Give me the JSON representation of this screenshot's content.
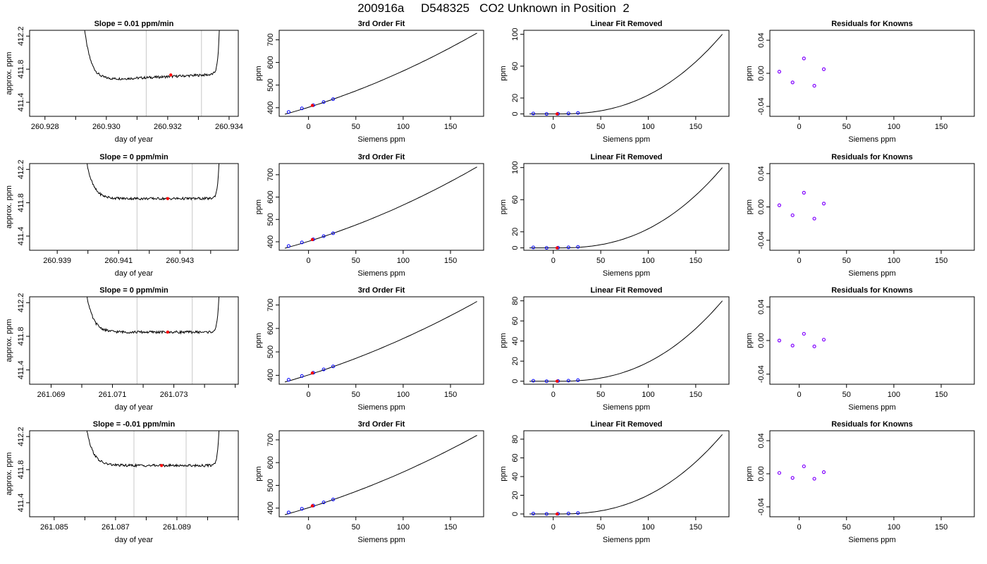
{
  "figure_title": "200916a     D548325   CO2 Unknown in Position  2",
  "colors": {
    "trace": "#000000",
    "window": "#c8c8c8",
    "highlight": "#ff0000",
    "known_points": "#0000ff",
    "unknown_points": "#ff0000",
    "residual_points": "#8000ff"
  },
  "chart_data": [
    {
      "row": 0,
      "type": "line",
      "title": "Slope =  0.01  ppm/min",
      "xlabel": "day of year",
      "ylabel": "approx. ppm",
      "x_ticks": [
        "260.928",
        "260.930",
        "260.932",
        "260.934"
      ],
      "y_ticks": [
        "411.4",
        "411.8",
        "412.2"
      ],
      "xlim": [
        260.9275,
        260.9343
      ],
      "ylim": [
        411.23,
        412.27
      ],
      "window": [
        260.9313,
        260.9331
      ],
      "highlight_x": 260.9321
    },
    {
      "row": 0,
      "type": "line",
      "title": "3rd Order Fit",
      "xlabel": "Siemens ppm",
      "ylabel": "ppm",
      "x_ticks": [
        "0",
        "50",
        "100",
        "150"
      ],
      "y_ticks": [
        "400",
        "500",
        "600",
        "700"
      ],
      "xlim": [
        -31,
        185
      ],
      "ylim": [
        362,
        742
      ],
      "known_points": {
        "x": [
          -21,
          -7,
          5,
          16,
          26
        ],
        "y": [
          381,
          397,
          411,
          425,
          438
        ]
      },
      "unknown_points": {
        "x": [
          4
        ],
        "y": [
          410
        ]
      },
      "curve_end_y": 730
    },
    {
      "row": 0,
      "type": "line",
      "title": "Linear Fit Removed",
      "xlabel": "Siemens ppm",
      "ylabel": "ppm",
      "x_ticks": [
        "0",
        "50",
        "100",
        "150"
      ],
      "y_ticks": [
        "0",
        "20",
        "60",
        "100"
      ],
      "xlim": [
        -31,
        185
      ],
      "ylim": [
        -3,
        105
      ],
      "known_points": {
        "x": [
          -21,
          -7,
          5,
          16,
          26
        ],
        "y": [
          0.5,
          0,
          0.2,
          0.6,
          1.2
        ]
      },
      "unknown_points": {
        "x": [
          4
        ],
        "y": [
          0
        ]
      },
      "curve_end_y": 100
    },
    {
      "row": 0,
      "type": "scatter",
      "title": "Residuals for Knowns",
      "xlabel": "Siemens ppm",
      "ylabel": "ppm",
      "x_ticks": [
        "0",
        "50",
        "100",
        "150"
      ],
      "y_ticks": [
        "-0.04",
        "0.00",
        "0.04"
      ],
      "xlim": [
        -31,
        185
      ],
      "ylim": [
        -0.052,
        0.052
      ],
      "points": {
        "x": [
          -21,
          -7,
          5,
          16,
          26
        ],
        "y": [
          0.002,
          -0.011,
          0.018,
          -0.015,
          0.005
        ]
      }
    },
    {
      "row": 1,
      "type": "line",
      "title": "Slope =  0  ppm/min",
      "xlabel": "day of year",
      "ylabel": "approx. ppm",
      "x_ticks": [
        "260.939",
        "260.941",
        "260.943"
      ],
      "y_ticks": [
        "411.4",
        "411.8",
        "412.2"
      ],
      "xlim": [
        260.9381,
        260.9449
      ],
      "ylim": [
        411.23,
        412.27
      ],
      "window": [
        260.9416,
        260.9434
      ],
      "highlight_x": 260.9426
    },
    {
      "row": 1,
      "type": "line",
      "title": "3rd Order Fit",
      "xlabel": "Siemens ppm",
      "ylabel": "ppm",
      "x_ticks": [
        "0",
        "50",
        "100",
        "150"
      ],
      "y_ticks": [
        "400",
        "500",
        "600",
        "700"
      ],
      "xlim": [
        -31,
        185
      ],
      "ylim": [
        362,
        750
      ],
      "known_points": {
        "x": [
          -21,
          -7,
          5,
          16,
          26
        ],
        "y": [
          381,
          397,
          411,
          425,
          438
        ]
      },
      "unknown_points": {
        "x": [
          4
        ],
        "y": [
          410
        ]
      },
      "curve_end_y": 735
    },
    {
      "row": 1,
      "type": "line",
      "title": "Linear Fit Removed",
      "xlabel": "Siemens ppm",
      "ylabel": "ppm",
      "x_ticks": [
        "0",
        "50",
        "100",
        "150"
      ],
      "y_ticks": [
        "0",
        "20",
        "60",
        "100"
      ],
      "xlim": [
        -31,
        185
      ],
      "ylim": [
        -3,
        105
      ],
      "known_points": {
        "x": [
          -21,
          -7,
          5,
          16,
          26
        ],
        "y": [
          0.5,
          0,
          0.2,
          0.6,
          1.2
        ]
      },
      "unknown_points": {
        "x": [
          4
        ],
        "y": [
          0
        ]
      },
      "curve_end_y": 100
    },
    {
      "row": 1,
      "type": "scatter",
      "title": "Residuals for Knowns",
      "xlabel": "Siemens ppm",
      "ylabel": "ppm",
      "x_ticks": [
        "0",
        "50",
        "100",
        "150"
      ],
      "y_ticks": [
        "-0.04",
        "0.00",
        "0.04"
      ],
      "xlim": [
        -31,
        185
      ],
      "ylim": [
        -0.052,
        0.052
      ],
      "points": {
        "x": [
          -21,
          -7,
          5,
          16,
          26
        ],
        "y": [
          0.002,
          -0.01,
          0.017,
          -0.014,
          0.004
        ]
      }
    },
    {
      "row": 2,
      "type": "line",
      "title": "Slope =  0  ppm/min",
      "xlabel": "day of year",
      "ylabel": "approx. ppm",
      "x_ticks": [
        "261.069",
        "261.071",
        "261.073"
      ],
      "y_ticks": [
        "411.4",
        "411.8",
        "412.2"
      ],
      "xlim": [
        261.0683,
        261.0751
      ],
      "ylim": [
        411.23,
        412.27
      ],
      "window": [
        261.0718,
        261.0736
      ],
      "highlight_x": 261.0728
    },
    {
      "row": 2,
      "type": "line",
      "title": "3rd Order Fit",
      "xlabel": "Siemens ppm",
      "ylabel": "ppm",
      "x_ticks": [
        "0",
        "50",
        "100",
        "150"
      ],
      "y_ticks": [
        "400",
        "500",
        "600",
        "700"
      ],
      "xlim": [
        -31,
        185
      ],
      "ylim": [
        362,
        735
      ],
      "known_points": {
        "x": [
          -21,
          -7,
          5,
          16,
          26
        ],
        "y": [
          381,
          397,
          411,
          425,
          438
        ]
      },
      "unknown_points": {
        "x": [
          4
        ],
        "y": [
          410
        ]
      },
      "curve_end_y": 715
    },
    {
      "row": 2,
      "type": "line",
      "title": "Linear Fit Removed",
      "xlabel": "Siemens ppm",
      "ylabel": "ppm",
      "x_ticks": [
        "0",
        "50",
        "100",
        "150"
      ],
      "y_ticks": [
        "0",
        "20",
        "40",
        "60",
        "80"
      ],
      "xlim": [
        -31,
        185
      ],
      "ylim": [
        -3,
        84
      ],
      "known_points": {
        "x": [
          -21,
          -7,
          5,
          16,
          26
        ],
        "y": [
          0.4,
          0,
          0.2,
          0.5,
          1.0
        ]
      },
      "unknown_points": {
        "x": [
          4
        ],
        "y": [
          0
        ]
      },
      "curve_end_y": 80
    },
    {
      "row": 2,
      "type": "scatter",
      "title": "Residuals for Knowns",
      "xlabel": "Siemens ppm",
      "ylabel": "ppm",
      "x_ticks": [
        "0",
        "50",
        "100",
        "150"
      ],
      "y_ticks": [
        "-0.04",
        "0.00",
        "0.04"
      ],
      "xlim": [
        -31,
        185
      ],
      "ylim": [
        -0.052,
        0.052
      ],
      "points": {
        "x": [
          -21,
          -7,
          5,
          16,
          26
        ],
        "y": [
          0.0,
          -0.006,
          0.008,
          -0.007,
          0.001
        ]
      }
    },
    {
      "row": 3,
      "type": "line",
      "title": "Slope =  -0.01  ppm/min",
      "xlabel": "day of year",
      "ylabel": "approx. ppm",
      "x_ticks": [
        "261.085",
        "261.087",
        "261.089"
      ],
      "y_ticks": [
        "411.4",
        "411.8",
        "412.2"
      ],
      "xlim": [
        261.0842,
        261.091
      ],
      "ylim": [
        411.23,
        412.27
      ],
      "window": [
        261.0876,
        261.0893
      ],
      "highlight_x": 261.0885
    },
    {
      "row": 3,
      "type": "line",
      "title": "3rd Order Fit",
      "xlabel": "Siemens ppm",
      "ylabel": "ppm",
      "x_ticks": [
        "0",
        "50",
        "100",
        "150"
      ],
      "y_ticks": [
        "400",
        "500",
        "600",
        "700"
      ],
      "xlim": [
        -31,
        185
      ],
      "ylim": [
        362,
        740
      ],
      "known_points": {
        "x": [
          -21,
          -7,
          5,
          16,
          26
        ],
        "y": [
          381,
          397,
          411,
          425,
          438
        ]
      },
      "unknown_points": {
        "x": [
          4
        ],
        "y": [
          410
        ]
      },
      "curve_end_y": 720
    },
    {
      "row": 3,
      "type": "line",
      "title": "Linear Fit Removed",
      "xlabel": "Siemens ppm",
      "ylabel": "ppm",
      "x_ticks": [
        "0",
        "50",
        "100",
        "150"
      ],
      "y_ticks": [
        "0",
        "20",
        "40",
        "60",
        "80"
      ],
      "xlim": [
        -31,
        185
      ],
      "ylim": [
        -3,
        89
      ],
      "known_points": {
        "x": [
          -21,
          -7,
          5,
          16,
          26
        ],
        "y": [
          0.4,
          0,
          0.2,
          0.5,
          1.0
        ]
      },
      "unknown_points": {
        "x": [
          4
        ],
        "y": [
          0
        ]
      },
      "curve_end_y": 85
    },
    {
      "row": 3,
      "type": "scatter",
      "title": "Residuals for Knowns",
      "xlabel": "Siemens ppm",
      "ylabel": "ppm",
      "x_ticks": [
        "0",
        "50",
        "100",
        "150"
      ],
      "y_ticks": [
        "-0.04",
        "0.00",
        "0.04"
      ],
      "xlim": [
        -31,
        185
      ],
      "ylim": [
        -0.052,
        0.052
      ],
      "points": {
        "x": [
          -21,
          -7,
          5,
          16,
          26
        ],
        "y": [
          0.001,
          -0.005,
          0.009,
          -0.006,
          0.002
        ]
      }
    }
  ]
}
